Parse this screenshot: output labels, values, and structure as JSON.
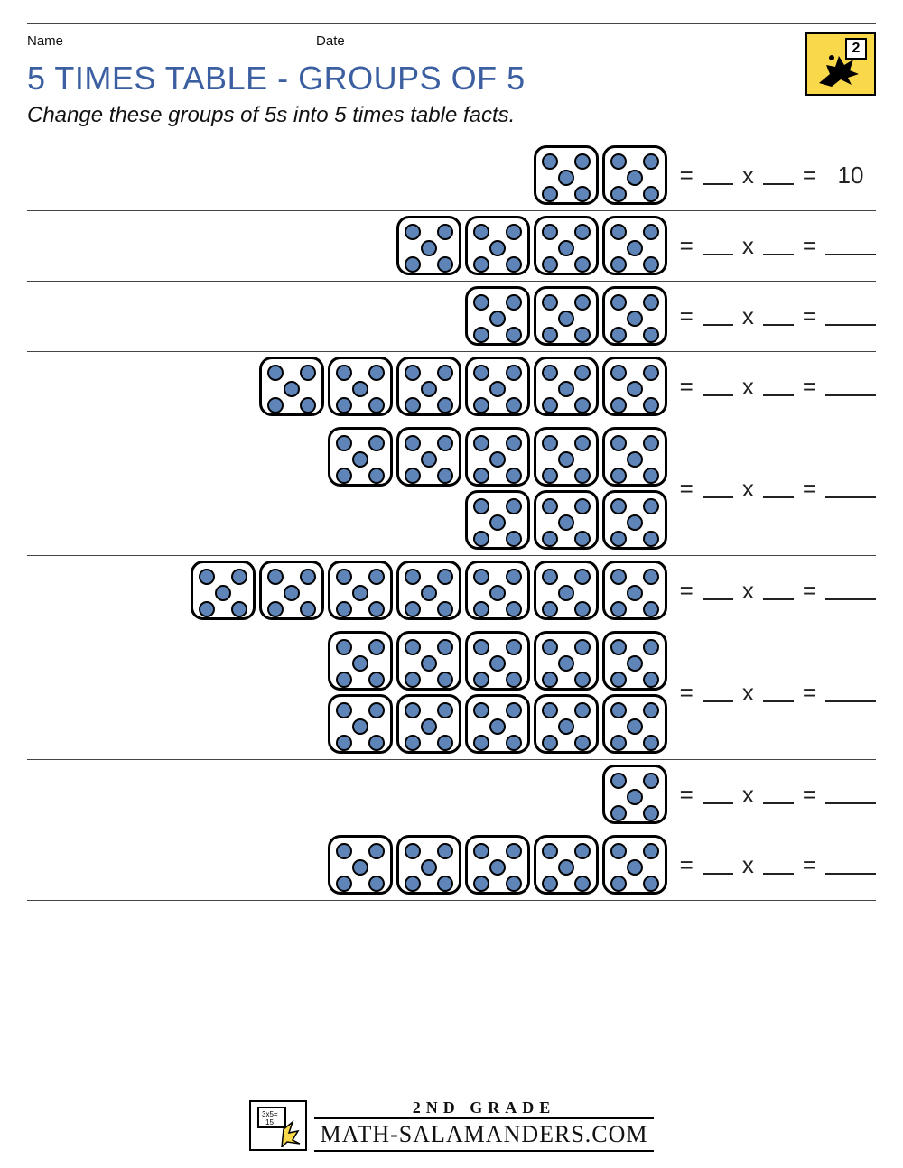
{
  "meta": {
    "name_label": "Name",
    "date_label": "Date"
  },
  "header": {
    "title": "5 TIMES TABLE - GROUPS OF 5",
    "subtitle": "Change these groups of 5s into 5 times table facts.",
    "title_color": "#3b5fa0",
    "badge_number": "2"
  },
  "equation": {
    "equals": "=",
    "times": "x"
  },
  "dice": {
    "pip_color": "#5e84b8",
    "border_color": "#000000"
  },
  "rows": [
    {
      "dice": 2,
      "wrap": false,
      "answer": "10"
    },
    {
      "dice": 4,
      "wrap": false,
      "answer": ""
    },
    {
      "dice": 3,
      "wrap": false,
      "answer": ""
    },
    {
      "dice": 6,
      "wrap": false,
      "answer": ""
    },
    {
      "dice": 8,
      "wrap": true,
      "answer": ""
    },
    {
      "dice": 7,
      "wrap": false,
      "answer": ""
    },
    {
      "dice": 10,
      "wrap": true,
      "answer": ""
    },
    {
      "dice": 1,
      "wrap": false,
      "answer": ""
    },
    {
      "dice": 5,
      "wrap": false,
      "answer": ""
    }
  ],
  "footer": {
    "grade": "2ND GRADE",
    "site": "MATH-SALAMANDERS.COM",
    "logo_text": "3x5=\n15"
  }
}
